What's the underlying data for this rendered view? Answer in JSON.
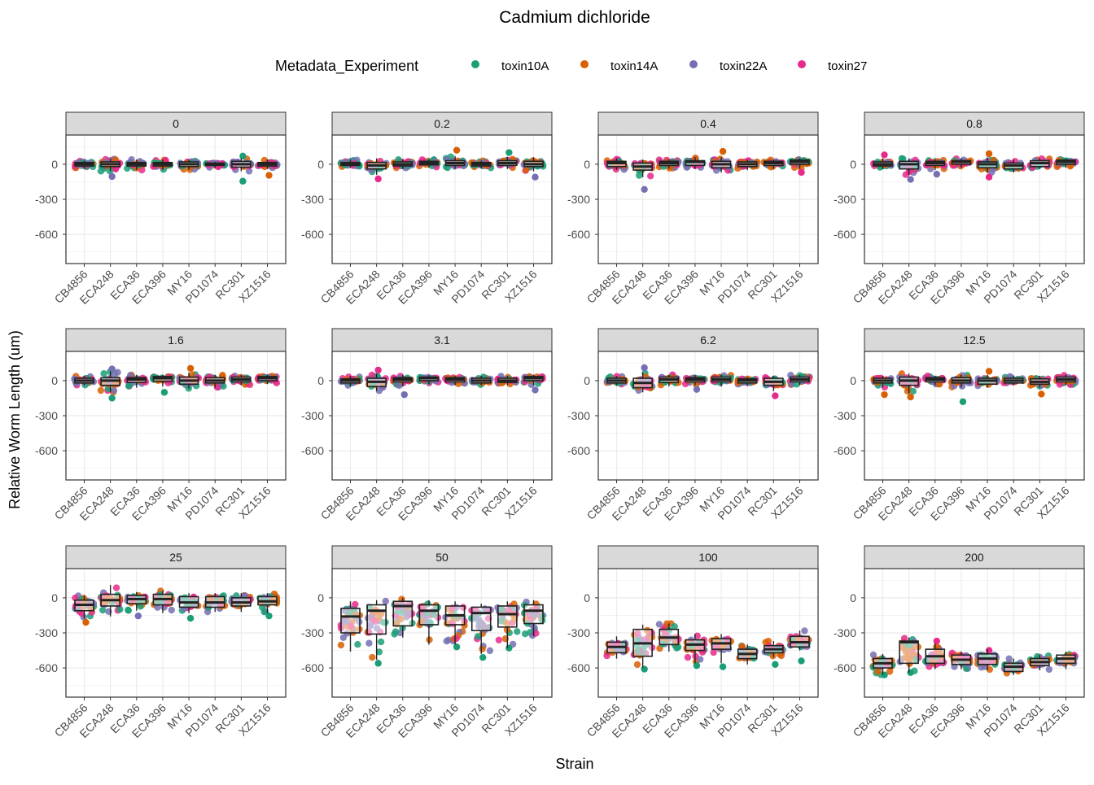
{
  "chart_data": {
    "type": "boxplot",
    "title": "Cadmium dichloride",
    "xlabel": "Strain",
    "ylabel": "Relative Worm Length (um)",
    "legend": {
      "title": "Metadata_Experiment",
      "position": "top",
      "entries": [
        "toxin10A",
        "toxin14A",
        "toxin22A",
        "toxin27"
      ]
    },
    "colors": {
      "toxin10A": "#1B9E77",
      "toxin14A": "#D95F02",
      "toxin22A": "#7570B3",
      "toxin27": "#E7298A",
      "strip_fill": "#D9D9D9",
      "panel_border": "#333333",
      "grid": "#EBEBEB"
    },
    "categories": [
      "CB4856",
      "ECA248",
      "ECA36",
      "ECA396",
      "MY16",
      "PD1074",
      "RC301",
      "XZ1516"
    ],
    "ylim": [
      -850,
      250
    ],
    "yticks": [
      0,
      -300,
      -600
    ],
    "ytick_labels": [
      "0",
      "-300",
      "-600"
    ],
    "panels": [
      {
        "concentration": "0",
        "median": [
          0,
          0,
          0,
          0,
          0,
          0,
          0,
          0
        ],
        "q1": [
          -15,
          -20,
          -15,
          -15,
          -20,
          -10,
          -25,
          -15
        ],
        "q3": [
          15,
          20,
          15,
          15,
          20,
          10,
          25,
          15
        ],
        "wlo": [
          -40,
          -60,
          -50,
          -50,
          -50,
          -30,
          -60,
          -40
        ],
        "whi": [
          30,
          45,
          40,
          40,
          40,
          20,
          50,
          40
        ],
        "outliers": [
          {
            "i": 6,
            "y": -145,
            "s": "toxin10A"
          },
          {
            "i": 1,
            "y": -105,
            "s": "toxin22A"
          },
          {
            "i": 7,
            "y": -95,
            "s": "toxin14A"
          },
          {
            "i": 6,
            "y": 70,
            "s": "toxin10A"
          }
        ]
      },
      {
        "concentration": "0.2",
        "median": [
          0,
          -10,
          0,
          10,
          10,
          0,
          10,
          0
        ],
        "q1": [
          -10,
          -40,
          -15,
          -5,
          -10,
          -15,
          -10,
          -20
        ],
        "q3": [
          15,
          15,
          20,
          25,
          30,
          15,
          30,
          25
        ],
        "wlo": [
          -30,
          -90,
          -40,
          -30,
          -40,
          -35,
          -40,
          -60
        ],
        "whi": [
          40,
          50,
          40,
          40,
          70,
          30,
          60,
          60
        ],
        "outliers": [
          {
            "i": 4,
            "y": 120,
            "s": "toxin14A"
          },
          {
            "i": 6,
            "y": 100,
            "s": "toxin10A"
          },
          {
            "i": 7,
            "y": -110,
            "s": "toxin22A"
          },
          {
            "i": 1,
            "y": -125,
            "s": "toxin27"
          }
        ]
      },
      {
        "concentration": "0.4",
        "median": [
          10,
          -20,
          10,
          20,
          0,
          0,
          10,
          20
        ],
        "q1": [
          -20,
          -50,
          -10,
          -10,
          -30,
          -20,
          -10,
          0
        ],
        "q3": [
          25,
          10,
          25,
          30,
          25,
          20,
          25,
          35
        ],
        "wlo": [
          -50,
          -110,
          -40,
          -40,
          -70,
          -50,
          -40,
          -40
        ],
        "whi": [
          50,
          40,
          40,
          60,
          60,
          40,
          40,
          50
        ],
        "outliers": [
          {
            "i": 1,
            "y": -215,
            "s": "toxin22A"
          },
          {
            "i": 4,
            "y": 110,
            "s": "toxin14A"
          },
          {
            "i": 7,
            "y": -70,
            "s": "toxin27"
          }
        ]
      },
      {
        "concentration": "0.8",
        "median": [
          0,
          0,
          10,
          20,
          0,
          -10,
          10,
          20
        ],
        "q1": [
          -15,
          -40,
          -10,
          0,
          -30,
          -40,
          -20,
          0
        ],
        "q3": [
          20,
          25,
          25,
          30,
          20,
          10,
          30,
          35
        ],
        "wlo": [
          -40,
          -90,
          -50,
          -30,
          -70,
          -70,
          -40,
          -30
        ],
        "whi": [
          50,
          50,
          40,
          50,
          60,
          40,
          50,
          50
        ],
        "outliers": [
          {
            "i": 1,
            "y": -130,
            "s": "toxin22A"
          },
          {
            "i": 4,
            "y": -110,
            "s": "toxin27"
          },
          {
            "i": 4,
            "y": 90,
            "s": "toxin14A"
          },
          {
            "i": 0,
            "y": 80,
            "s": "toxin27"
          },
          {
            "i": 2,
            "y": -85,
            "s": "toxin22A"
          }
        ]
      },
      {
        "concentration": "1.6",
        "median": [
          0,
          0,
          10,
          20,
          0,
          0,
          10,
          20
        ],
        "q1": [
          -20,
          -40,
          -15,
          -5,
          -30,
          -20,
          -10,
          0
        ],
        "q3": [
          20,
          25,
          25,
          35,
          30,
          25,
          30,
          35
        ],
        "wlo": [
          -40,
          -100,
          -60,
          -50,
          -70,
          -60,
          -40,
          -30
        ],
        "whi": [
          40,
          80,
          50,
          50,
          70,
          50,
          50,
          50
        ],
        "outliers": [
          {
            "i": 1,
            "y": -150,
            "s": "toxin10A"
          },
          {
            "i": 3,
            "y": -100,
            "s": "toxin10A"
          },
          {
            "i": 4,
            "y": 105,
            "s": "toxin14A"
          },
          {
            "i": 1,
            "y": 100,
            "s": "toxin22A"
          }
        ]
      },
      {
        "concentration": "3.1",
        "median": [
          0,
          -10,
          10,
          20,
          10,
          0,
          0,
          20
        ],
        "q1": [
          -20,
          -50,
          -10,
          0,
          -10,
          -20,
          -15,
          0
        ],
        "q3": [
          15,
          20,
          25,
          30,
          25,
          20,
          20,
          35
        ],
        "wlo": [
          -50,
          -90,
          -50,
          -30,
          -40,
          -40,
          -40,
          -40
        ],
        "whi": [
          40,
          60,
          50,
          45,
          40,
          40,
          40,
          50
        ],
        "outliers": [
          {
            "i": 2,
            "y": -120,
            "s": "toxin22A"
          },
          {
            "i": 1,
            "y": 90,
            "s": "toxin27"
          },
          {
            "i": 7,
            "y": -80,
            "s": "toxin22A"
          }
        ]
      },
      {
        "concentration": "6.2",
        "median": [
          0,
          -20,
          10,
          10,
          10,
          0,
          -10,
          10
        ],
        "q1": [
          -20,
          -60,
          -15,
          -10,
          -10,
          -20,
          -40,
          -10
        ],
        "q3": [
          20,
          20,
          30,
          25,
          30,
          15,
          20,
          30
        ],
        "wlo": [
          -40,
          -100,
          -50,
          -40,
          -50,
          -40,
          -90,
          -40
        ],
        "whi": [
          40,
          70,
          50,
          50,
          50,
          30,
          40,
          50
        ],
        "outliers": [
          {
            "i": 6,
            "y": -130,
            "s": "toxin27"
          },
          {
            "i": 1,
            "y": 110,
            "s": "toxin22A"
          },
          {
            "i": 3,
            "y": -75,
            "s": "toxin22A"
          }
        ]
      },
      {
        "concentration": "12.5",
        "median": [
          0,
          0,
          10,
          0,
          0,
          0,
          -10,
          10
        ],
        "q1": [
          -20,
          -40,
          -10,
          -20,
          -30,
          -20,
          -30,
          -10
        ],
        "q3": [
          20,
          30,
          25,
          25,
          20,
          20,
          15,
          30
        ],
        "wlo": [
          -60,
          -110,
          -40,
          -60,
          -60,
          -40,
          -60,
          -40
        ],
        "whi": [
          40,
          60,
          40,
          50,
          50,
          40,
          40,
          50
        ],
        "outliers": [
          {
            "i": 3,
            "y": -180,
            "s": "toxin10A"
          },
          {
            "i": 1,
            "y": -140,
            "s": "toxin14A"
          },
          {
            "i": 0,
            "y": -120,
            "s": "toxin14A"
          },
          {
            "i": 4,
            "y": 80,
            "s": "toxin14A"
          },
          {
            "i": 6,
            "y": -115,
            "s": "toxin14A"
          }
        ]
      },
      {
        "concentration": "25",
        "median": [
          -60,
          -20,
          -10,
          -10,
          -40,
          -40,
          -40,
          -30
        ],
        "q1": [
          -110,
          -70,
          -50,
          -60,
          -80,
          -80,
          -70,
          -60
        ],
        "q3": [
          -20,
          30,
          20,
          30,
          10,
          10,
          0,
          10
        ],
        "wlo": [
          -180,
          -160,
          -110,
          -130,
          -130,
          -120,
          -120,
          -130
        ],
        "whi": [
          20,
          110,
          50,
          60,
          40,
          40,
          40,
          40
        ],
        "outliers": [
          {
            "i": 0,
            "y": -210,
            "s": "toxin14A"
          },
          {
            "i": 4,
            "y": -175,
            "s": "toxin10A"
          },
          {
            "i": 2,
            "y": -155,
            "s": "toxin22A"
          },
          {
            "i": 7,
            "y": -155,
            "s": "toxin10A"
          }
        ]
      },
      {
        "concentration": "50",
        "median": [
          -160,
          -110,
          -70,
          -110,
          -150,
          -130,
          -140,
          -110
        ],
        "q1": [
          -300,
          -310,
          -240,
          -230,
          -230,
          -280,
          -250,
          -220
        ],
        "q3": [
          -90,
          -60,
          -30,
          -60,
          -70,
          -80,
          -70,
          -60
        ],
        "wlo": [
          -460,
          -530,
          -340,
          -400,
          -400,
          -480,
          -430,
          -330
        ],
        "whi": [
          -30,
          -20,
          0,
          -20,
          -30,
          -50,
          -30,
          -20
        ],
        "outliers": [
          {
            "i": 1,
            "y": -560,
            "s": "toxin10A"
          },
          {
            "i": 5,
            "y": -510,
            "s": "toxin10A"
          },
          {
            "i": 4,
            "y": -420,
            "s": "toxin10A"
          },
          {
            "i": 6,
            "y": -430,
            "s": "toxin10A"
          }
        ]
      },
      {
        "concentration": "100",
        "median": [
          -420,
          -390,
          -340,
          -400,
          -390,
          -480,
          -440,
          -380
        ],
        "q1": [
          -470,
          -500,
          -400,
          -450,
          -440,
          -520,
          -470,
          -420
        ],
        "q3": [
          -380,
          -270,
          -270,
          -360,
          -350,
          -440,
          -410,
          -330
        ],
        "wlo": [
          -520,
          -600,
          -460,
          -560,
          -560,
          -570,
          -510,
          -450
        ],
        "whi": [
          -330,
          -230,
          -220,
          -310,
          -310,
          -400,
          -370,
          -280
        ],
        "outliers": [
          {
            "i": 1,
            "y": -610,
            "s": "toxin10A"
          },
          {
            "i": 4,
            "y": -590,
            "s": "toxin10A"
          },
          {
            "i": 3,
            "y": -580,
            "s": "toxin10A"
          },
          {
            "i": 6,
            "y": -570,
            "s": "toxin10A"
          },
          {
            "i": 7,
            "y": -540,
            "s": "toxin10A"
          },
          {
            "i": 0,
            "y": -390,
            "s": "toxin27"
          }
        ]
      },
      {
        "concentration": "200",
        "median": [
          -560,
          -380,
          -500,
          -530,
          -520,
          -590,
          -550,
          -520
        ],
        "q1": [
          -600,
          -560,
          -560,
          -570,
          -570,
          -630,
          -580,
          -560
        ],
        "q3": [
          -520,
          -370,
          -440,
          -490,
          -480,
          -560,
          -520,
          -490
        ],
        "wlo": [
          -660,
          -640,
          -610,
          -610,
          -620,
          -660,
          -620,
          -610
        ],
        "whi": [
          -480,
          -340,
          -390,
          -460,
          -440,
          -520,
          -490,
          -460
        ],
        "outliers": [
          {
            "i": 1,
            "y": -640,
            "s": "toxin10A"
          },
          {
            "i": 0,
            "y": -660,
            "s": "toxin10A"
          },
          {
            "i": 2,
            "y": -370,
            "s": "toxin27"
          },
          {
            "i": 4,
            "y": -450,
            "s": "toxin27"
          }
        ]
      }
    ]
  }
}
